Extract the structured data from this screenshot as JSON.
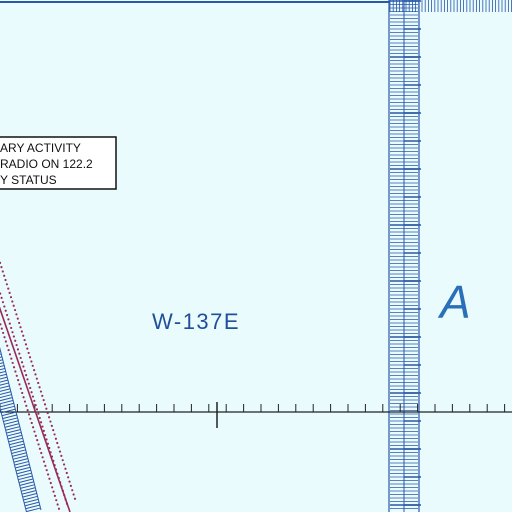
{
  "notice": {
    "lines": [
      "ARY ACTIVITY",
      "RADIO ON 122.2",
      "Y STATUS"
    ]
  },
  "airspace": {
    "name": "W-137E",
    "class": "A"
  }
}
